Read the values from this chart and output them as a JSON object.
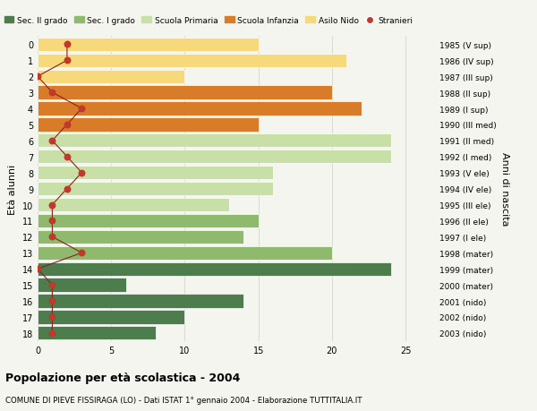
{
  "ages": [
    18,
    17,
    16,
    15,
    14,
    13,
    12,
    11,
    10,
    9,
    8,
    7,
    6,
    5,
    4,
    3,
    2,
    1,
    0
  ],
  "right_labels": [
    "1985 (V sup)",
    "1986 (IV sup)",
    "1987 (III sup)",
    "1988 (II sup)",
    "1989 (I sup)",
    "1990 (III med)",
    "1991 (II med)",
    "1992 (I med)",
    "1993 (V ele)",
    "1994 (IV ele)",
    "1995 (III ele)",
    "1996 (II ele)",
    "1997 (I ele)",
    "1998 (mater)",
    "1999 (mater)",
    "2000 (mater)",
    "2001 (nido)",
    "2002 (nido)",
    "2003 (nido)"
  ],
  "bar_values": [
    8,
    10,
    14,
    6,
    24,
    20,
    14,
    15,
    13,
    16,
    16,
    24,
    24,
    15,
    22,
    20,
    10,
    21,
    15
  ],
  "bar_colors": [
    "#4d7c4d",
    "#4d7c4d",
    "#4d7c4d",
    "#4d7c4d",
    "#4d7c4d",
    "#8fba6e",
    "#8fba6e",
    "#8fba6e",
    "#c8dfa8",
    "#c8dfa8",
    "#c8dfa8",
    "#c8dfa8",
    "#c8dfa8",
    "#d97c2a",
    "#d97c2a",
    "#d97c2a",
    "#f5d97a",
    "#f5d97a",
    "#f5d97a"
  ],
  "stranieri_values": [
    1,
    1,
    1,
    1,
    0,
    3,
    1,
    1,
    1,
    2,
    3,
    2,
    1,
    2,
    3,
    1,
    0,
    2,
    2
  ],
  "legend_labels": [
    "Sec. II grado",
    "Sec. I grado",
    "Scuola Primaria",
    "Scuola Infanzia",
    "Asilo Nido",
    "Stranieri"
  ],
  "legend_colors": [
    "#4d7c4d",
    "#8fba6e",
    "#c8dfa8",
    "#d97c2a",
    "#f5d97a",
    "#c0392b"
  ],
  "ylabel_left": "Età alunni",
  "ylabel_right": "Anni di nascita",
  "xlim": [
    0,
    27
  ],
  "xticks": [
    0,
    5,
    10,
    15,
    20,
    25
  ],
  "title": "Popolazione per età scolastica - 2004",
  "subtitle": "COMUNE DI PIEVE FISSIRAGA (LO) - Dati ISTAT 1° gennaio 2004 - Elaborazione TUTTITALIA.IT",
  "bg_color": "#f5f5f0",
  "grid_color": "#d0d0b8",
  "stranieri_line_color": "#8b2020",
  "stranieri_dot_color": "#c0392b"
}
